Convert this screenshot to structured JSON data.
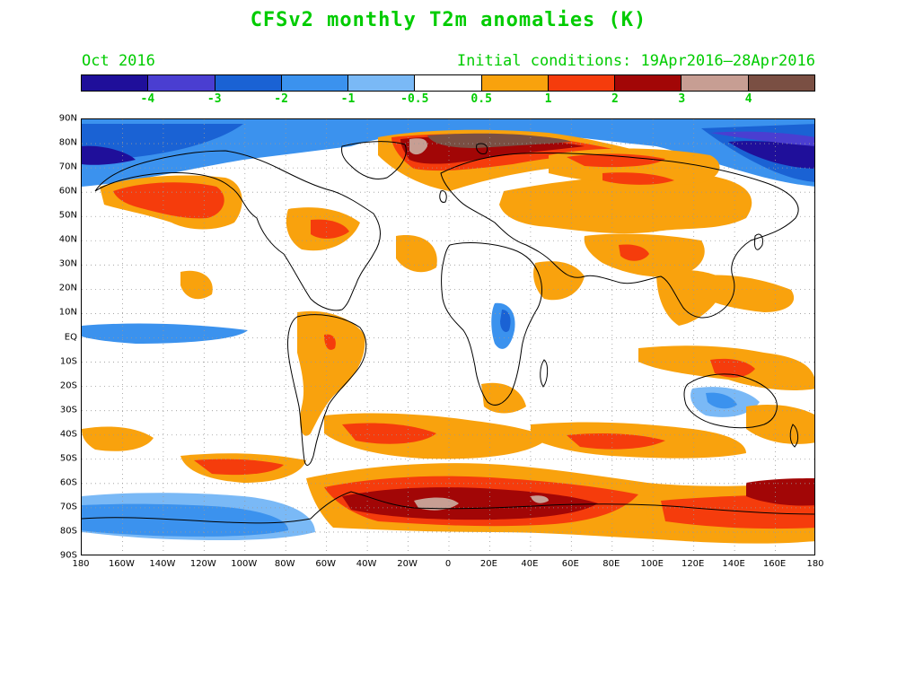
{
  "title": "CFSv2 monthly T2m anomalies (K)",
  "valid_month": "Oct 2016",
  "initial_conditions": "Initial conditions: 19Apr2016–28Apr2016",
  "colorbar": {
    "colors": [
      "#1f0f9a",
      "#4a3ed1",
      "#1a62d4",
      "#3b92ee",
      "#7ab9f6",
      "#ffffff",
      "#f9a20d",
      "#f53c0c",
      "#a20606",
      "#c79e93",
      "#7a4f43"
    ],
    "labels": [
      "-4",
      "-3",
      "-2",
      "-1",
      "-0.5",
      "0.5",
      "1",
      "2",
      "3",
      "4"
    ]
  },
  "axes": {
    "lat_labels": [
      "90N",
      "80N",
      "70N",
      "60N",
      "50N",
      "40N",
      "30N",
      "20N",
      "10N",
      "EQ",
      "10S",
      "20S",
      "30S",
      "40S",
      "50S",
      "60S",
      "70S",
      "80S",
      "90S"
    ],
    "lon_labels": [
      "180",
      "160W",
      "140W",
      "120W",
      "100W",
      "80W",
      "60W",
      "40W",
      "20W",
      "0",
      "20E",
      "40E",
      "60E",
      "80E",
      "100E",
      "120E",
      "140E",
      "160E",
      "180"
    ]
  }
}
